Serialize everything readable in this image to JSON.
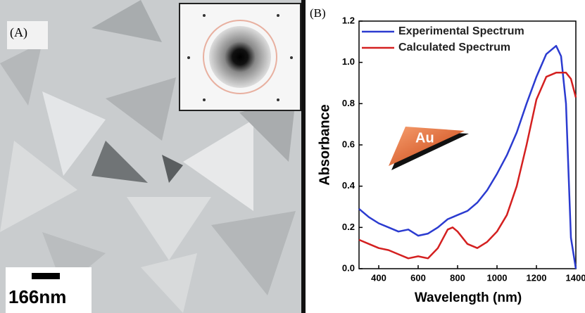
{
  "image_panel": {
    "label": "(A)",
    "scale_bar": "166nm"
  },
  "chart_data": {
    "type": "line",
    "panel_label": "(B)",
    "annotation": "Au",
    "xlabel": "Wavelength (nm)",
    "ylabel": "Absorbance",
    "x": [
      300,
      350,
      400,
      450,
      500,
      550,
      600,
      650,
      700,
      750,
      775,
      800,
      850,
      900,
      950,
      1000,
      1050,
      1100,
      1150,
      1200,
      1250,
      1300,
      1325,
      1350,
      1375,
      1400
    ],
    "series": [
      {
        "name": "Experimental Spectrum",
        "color": "#2b3bd0",
        "values": [
          0.29,
          0.25,
          0.22,
          0.2,
          0.18,
          0.19,
          0.16,
          0.17,
          0.2,
          0.24,
          0.25,
          0.26,
          0.28,
          0.32,
          0.38,
          0.46,
          0.55,
          0.66,
          0.8,
          0.93,
          1.04,
          1.08,
          1.03,
          0.8,
          0.15,
          0.0
        ]
      },
      {
        "name": "Calculated Spectrum",
        "color": "#d42020",
        "values": [
          0.14,
          0.12,
          0.1,
          0.09,
          0.07,
          0.05,
          0.06,
          0.05,
          0.1,
          0.19,
          0.2,
          0.18,
          0.12,
          0.1,
          0.13,
          0.18,
          0.26,
          0.4,
          0.6,
          0.82,
          0.93,
          0.95,
          0.95,
          0.95,
          0.92,
          0.83
        ]
      }
    ],
    "xlim": [
      300,
      1400
    ],
    "ylim": [
      0,
      1.2
    ],
    "xticks": [
      400,
      600,
      800,
      1000,
      1200,
      1400
    ],
    "yticks": [
      {
        "value": 0,
        "label": "0.0"
      },
      0.2,
      0.4,
      0.6,
      0.8,
      {
        "value": 1,
        "label": "1.0"
      },
      1.2
    ],
    "legend": "upper left"
  }
}
